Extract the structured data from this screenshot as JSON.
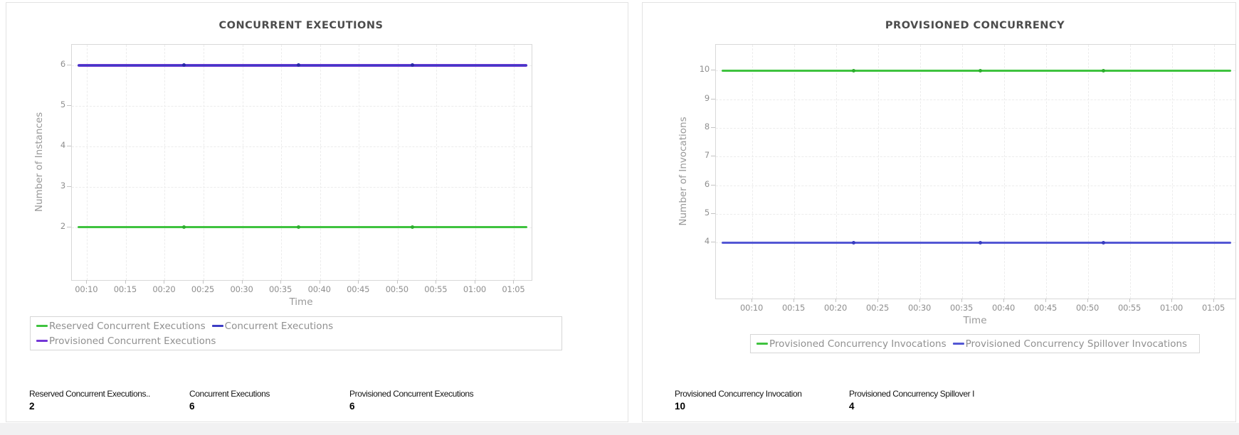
{
  "page": {
    "background": "#ffffff",
    "footer_strip_color": "#f1f1f2",
    "card_border": "#e3e3e3"
  },
  "chart_data": [
    {
      "type": "line",
      "title": "CONCURRENT EXECUTIONS",
      "xlabel": "Time",
      "ylabel": "Number of Instances",
      "x": [
        "00:10",
        "00:15",
        "00:20",
        "00:25",
        "00:30",
        "00:35",
        "00:40",
        "00:45",
        "00:50",
        "00:55",
        "01:00",
        "01:05"
      ],
      "ylim": [
        0.7,
        6.5
      ],
      "yticks": [
        2,
        3,
        4,
        5,
        6
      ],
      "grid": true,
      "legend_position": "bottom-left",
      "series": [
        {
          "name": "Reserved Concurrent Executions",
          "color": "#3fc33f",
          "marker_color": "#2fae2f",
          "line_width": 3,
          "markers": true,
          "values": [
            2,
            2,
            2,
            2,
            2,
            2,
            2,
            2,
            2,
            2,
            2,
            2
          ]
        },
        {
          "name": "Provisioned Concurrent Executions",
          "color": "#7336d6",
          "marker_color": "#7336d6",
          "line_width": 4,
          "markers": false,
          "values": [
            6,
            6,
            6,
            6,
            6,
            6,
            6,
            6,
            6,
            6,
            6,
            6
          ]
        },
        {
          "name": "Concurrent Executions",
          "color": "#3d3dc4",
          "marker_color": "#2929a8",
          "line_width": 2,
          "markers": true,
          "values": [
            6,
            6,
            6,
            6,
            6,
            6,
            6,
            6,
            6,
            6,
            6,
            6
          ]
        }
      ],
      "legend_rows": [
        [
          "Reserved Concurrent Executions",
          "Concurrent Executions"
        ],
        [
          "Provisioned Concurrent Executions"
        ]
      ],
      "summary_stats": [
        {
          "label": "Reserved Concurrent Executions..",
          "value": "2"
        },
        {
          "label": "Concurrent Executions",
          "value": "6"
        },
        {
          "label": "Provisioned Concurrent Executions",
          "value": "6"
        }
      ]
    },
    {
      "type": "line",
      "title": "PROVISIONED CONCURRENCY",
      "xlabel": "Time",
      "ylabel": "Number of Invocations",
      "x": [
        "00:10",
        "00:15",
        "00:20",
        "00:25",
        "00:30",
        "00:35",
        "00:40",
        "00:45",
        "00:50",
        "00:55",
        "01:00",
        "01:05"
      ],
      "ylim": [
        2.05,
        10.9
      ],
      "yticks": [
        4,
        5,
        6,
        7,
        8,
        9,
        10
      ],
      "grid": true,
      "legend_position": "bottom-center",
      "series": [
        {
          "name": "Provisioned Concurrency Invocations",
          "color": "#3fc33f",
          "marker_color": "#2fae2f",
          "line_width": 3,
          "markers": true,
          "values": [
            10,
            10,
            10,
            10,
            10,
            10,
            10,
            10,
            10,
            10,
            10,
            10
          ]
        },
        {
          "name": "Provisioned Concurrency Spillover Invocations",
          "color": "#5357d4",
          "marker_color": "#3a3ec0",
          "line_width": 3,
          "markers": true,
          "values": [
            4,
            4,
            4,
            4,
            4,
            4,
            4,
            4,
            4,
            4,
            4,
            4
          ]
        }
      ],
      "legend_rows": [
        [
          "Provisioned Concurrency Invocations",
          "Provisioned Concurrency Spillover Invocations"
        ]
      ],
      "summary_stats": [
        {
          "label": "Provisioned Concurrency Invocation",
          "value": "10"
        },
        {
          "label": "Provisioned Concurrency Spillover I",
          "value": "4"
        }
      ]
    }
  ]
}
